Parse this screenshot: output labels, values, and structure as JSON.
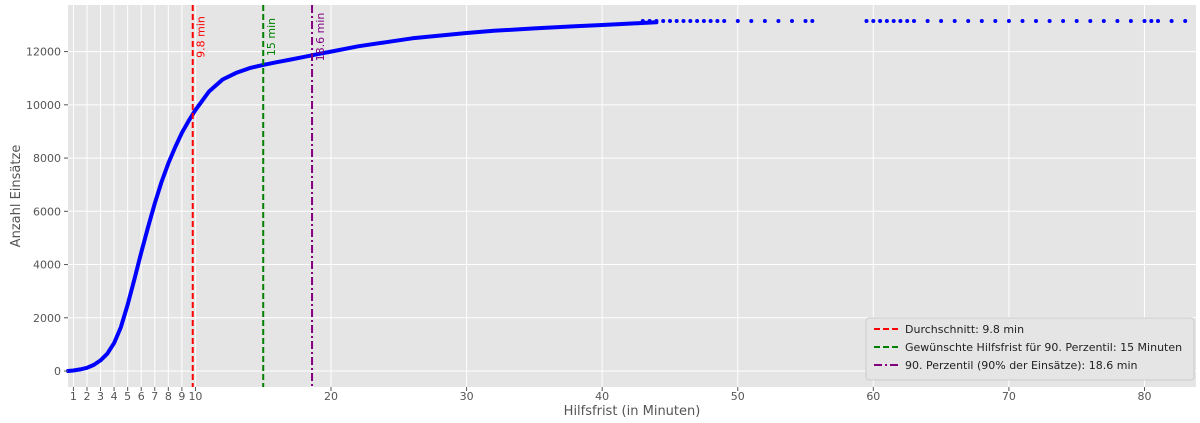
{
  "chart_data": {
    "type": "line",
    "title": "",
    "xlabel": "Hilfsfrist (in Minuten)",
    "ylabel": "Anzahl Einsätze",
    "xlim": [
      0.6,
      83.8
    ],
    "ylim": [
      -600,
      13750
    ],
    "grid": true,
    "legend_position": "bottom-right",
    "x_ticks": [
      "1",
      "2",
      "3",
      "4",
      "5",
      "6",
      "7",
      "8",
      "9",
      "10",
      "20",
      "30",
      "40",
      "50",
      "60",
      "70",
      "80"
    ],
    "x_tick_values": [
      1,
      2,
      3,
      4,
      5,
      6,
      7,
      8,
      9,
      10,
      20,
      30,
      40,
      50,
      60,
      70,
      80
    ],
    "y_ticks": [
      "0",
      "2000",
      "4000",
      "6000",
      "8000",
      "10000",
      "12000"
    ],
    "y_tick_values": [
      0,
      2000,
      4000,
      6000,
      8000,
      10000,
      12000
    ],
    "series": [
      {
        "color": "#0000ff",
        "curve_x": [
          0.6,
          1,
          1.5,
          2,
          2.5,
          3,
          3.5,
          4,
          4.5,
          5,
          5.5,
          6,
          6.5,
          7,
          7.5,
          8,
          8.5,
          9,
          9.5,
          10,
          10.5,
          11,
          12,
          13,
          14,
          15,
          16,
          17,
          18,
          19,
          20,
          22,
          24,
          26,
          28,
          30,
          32,
          35,
          38,
          40,
          42,
          44
        ],
        "curve_y": [
          0,
          20,
          60,
          120,
          230,
          400,
          650,
          1050,
          1650,
          2500,
          3450,
          4450,
          5400,
          6300,
          7100,
          7800,
          8400,
          8950,
          9400,
          9800,
          10150,
          10500,
          10950,
          11200,
          11380,
          11500,
          11600,
          11700,
          11800,
          11900,
          12000,
          12200,
          12350,
          12500,
          12600,
          12700,
          12780,
          12870,
          12950,
          13000,
          13050,
          13100
        ],
        "tail_x": [
          43,
          43.5,
          44,
          44.5,
          45,
          45.5,
          46,
          46.5,
          47,
          47.5,
          48,
          48.5,
          49,
          50,
          51,
          52,
          53,
          54,
          55,
          55.5,
          59.5,
          60,
          60.5,
          61,
          61.5,
          62,
          62.5,
          63,
          64,
          65,
          66,
          67,
          68,
          69,
          70,
          71,
          72,
          73,
          74,
          75,
          76,
          77,
          78,
          79,
          80,
          80.5,
          81,
          82,
          83
        ],
        "tail_y": 13150
      }
    ],
    "reference_lines": [
      {
        "x": 9.8,
        "color": "#ff0000",
        "style": "dashed",
        "label": "9.8 min",
        "legend": "Durchschnitt: 9.8 min"
      },
      {
        "x": 15,
        "color": "#008000",
        "style": "dashed",
        "label": "15 min",
        "legend": "Gewünschte Hilfsfrist für 90. Perzentil: 15 Minuten"
      },
      {
        "x": 18.6,
        "color": "#800080",
        "style": "dashdot",
        "label": "18.6 min",
        "legend": "90. Perzentil (90% der Einsätze): 18.6 min"
      }
    ]
  }
}
